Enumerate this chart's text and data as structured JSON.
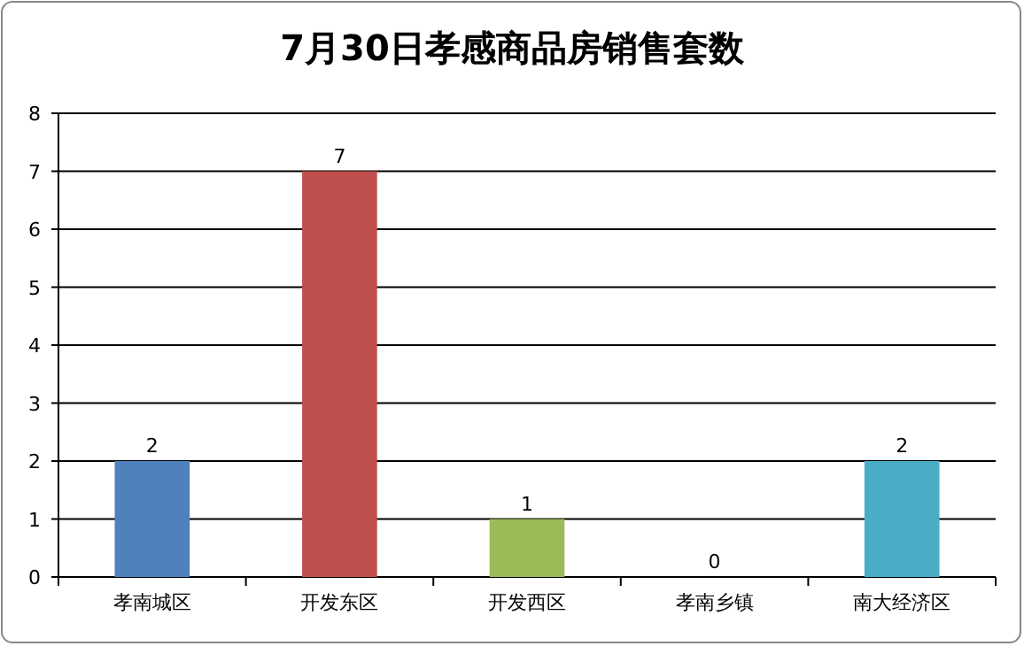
{
  "chart_data": {
    "type": "bar",
    "title": "7月30日孝感商品房销售套数",
    "categories": [
      "孝南城区",
      "开发东区",
      "开发西区",
      "孝南乡镇",
      "南大经济区"
    ],
    "values": [
      2,
      7,
      1,
      0,
      2
    ],
    "colors": [
      "#4f81bd",
      "#c0504d",
      "#9bbb59",
      "#8064a2",
      "#4bacc6"
    ],
    "ylim": [
      0,
      8
    ],
    "yticks": [
      0,
      1,
      2,
      3,
      4,
      5,
      6,
      7,
      8
    ],
    "grid": "y",
    "data_labels": true
  }
}
